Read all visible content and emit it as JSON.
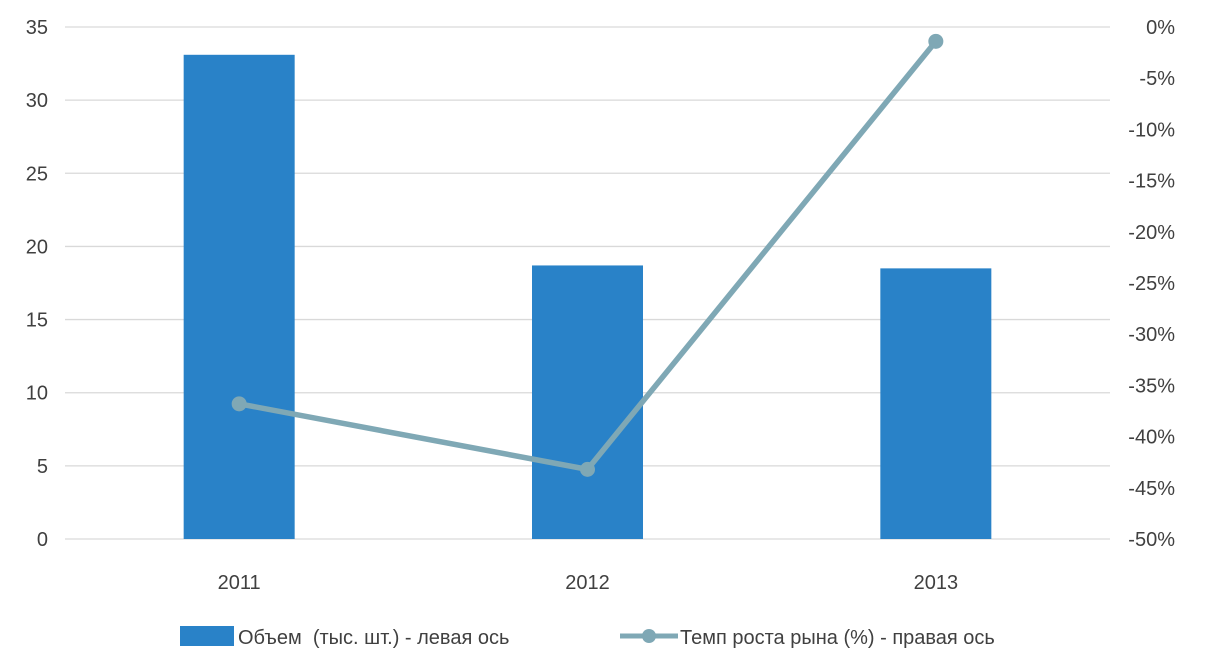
{
  "chart_data": {
    "type": "bar",
    "categories": [
      "2011",
      "2012",
      "2013"
    ],
    "series": [
      {
        "name": "Объем  (тыс. шт.) - левая ось",
        "type": "bar",
        "axis": "left",
        "values": [
          33.1,
          18.7,
          18.5
        ],
        "color": "#2982C8"
      },
      {
        "name": "Темп роста рына (%) - правая ось",
        "type": "line",
        "axis": "right",
        "values": [
          -36.8,
          -43.2,
          -1.4
        ],
        "color": "#7FA8B5"
      }
    ],
    "y_left": {
      "min": 0,
      "max": 35,
      "step": 5,
      "tick_labels": [
        "0",
        "5",
        "10",
        "15",
        "20",
        "25",
        "30",
        "35"
      ]
    },
    "y_right": {
      "min": -50,
      "max": 0,
      "step": 5,
      "tick_labels": [
        "-50%",
        "-45%",
        "-40%",
        "-35%",
        "-30%",
        "-25%",
        "-20%",
        "-15%",
        "-10%",
        "-5%",
        "0%"
      ]
    },
    "grid": true,
    "legend_position": "bottom",
    "grid_color": "#D9D9D9"
  }
}
